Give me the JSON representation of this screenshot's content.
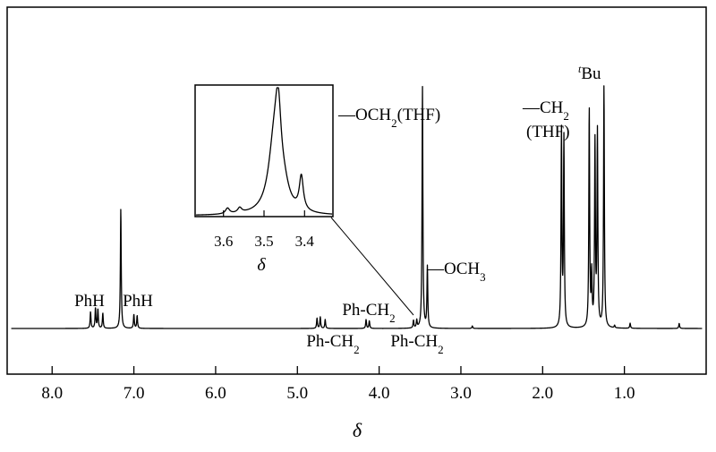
{
  "chart_data": [
    {
      "type": "line",
      "title": "",
      "xlabel": "δ",
      "ylabel": "",
      "x_reversed": true,
      "xlim": [
        8.55,
        0.0
      ],
      "ylim": [
        -0.12,
        1.0
      ],
      "grid": false,
      "legend": "none",
      "x_ticks": [
        {
          "value": 8.0,
          "label": "8.0"
        },
        {
          "value": 7.0,
          "label": "7.0"
        },
        {
          "value": 6.0,
          "label": "6.0"
        },
        {
          "value": 5.0,
          "label": "5.0"
        },
        {
          "value": 4.0,
          "label": "4.0"
        },
        {
          "value": 3.0,
          "label": "3.0"
        },
        {
          "value": 2.0,
          "label": "2.0"
        },
        {
          "value": 1.0,
          "label": "1.0"
        }
      ],
      "peaks": [
        {
          "x": 7.53,
          "h": 0.065
        },
        {
          "x": 7.47,
          "h": 0.08
        },
        {
          "x": 7.44,
          "h": 0.075
        },
        {
          "x": 7.38,
          "h": 0.06
        },
        {
          "x": 7.16,
          "h": 0.47
        },
        {
          "x": 7.0,
          "h": 0.055
        },
        {
          "x": 6.96,
          "h": 0.05
        },
        {
          "x": 4.76,
          "h": 0.04
        },
        {
          "x": 4.72,
          "h": 0.045
        },
        {
          "x": 4.66,
          "h": 0.035
        },
        {
          "x": 4.16,
          "h": 0.035
        },
        {
          "x": 4.12,
          "h": 0.03
        },
        {
          "x": 3.58,
          "h": 0.03
        },
        {
          "x": 3.54,
          "h": 0.03
        },
        {
          "x": 3.47,
          "h": 0.95
        },
        {
          "x": 3.41,
          "h": 0.24
        },
        {
          "x": 2.86,
          "h": 0.01
        },
        {
          "x": 1.77,
          "h": 0.77
        },
        {
          "x": 1.74,
          "h": 0.74
        },
        {
          "x": 1.43,
          "h": 0.86
        },
        {
          "x": 1.4,
          "h": 0.2
        },
        {
          "x": 1.36,
          "h": 0.72
        },
        {
          "x": 1.33,
          "h": 0.76
        },
        {
          "x": 1.25,
          "h": 0.95
        },
        {
          "x": 1.12,
          "h": 0.01
        },
        {
          "x": 0.93,
          "h": 0.02
        },
        {
          "x": 0.33,
          "h": 0.02
        }
      ],
      "annotations": [
        {
          "id": "phh-left",
          "html": "PhH"
        },
        {
          "id": "phh-right",
          "html": "PhH"
        },
        {
          "id": "ph-ch2-a",
          "html": "Ph-CH<tspan baseline-shift='sub' font-size='13'>2</tspan>"
        },
        {
          "id": "ph-ch2-b",
          "html": "Ph-CH<tspan baseline-shift='sub' font-size='13'>2</tspan>"
        },
        {
          "id": "ph-ch2-c",
          "html": "Ph-CH<tspan baseline-shift='sub' font-size='13'>2</tspan>"
        },
        {
          "id": "och2-thf",
          "html": "—OCH<tspan baseline-shift='sub' font-size='13'>2</tspan>(THF)"
        },
        {
          "id": "och3",
          "html": "—OCH<tspan baseline-shift='sub' font-size='13'>3</tspan>"
        },
        {
          "id": "ch2-thf-1",
          "html": "—CH<tspan baseline-shift='sub' font-size='13'>2</tspan>"
        },
        {
          "id": "ch2-thf-2",
          "html": "(THF)"
        },
        {
          "id": "tbu",
          "html": "<tspan font-style='italic' baseline-shift='super' font-size='12'>t</tspan>Bu"
        }
      ]
    },
    {
      "type": "line",
      "role": "inset",
      "xlabel": "δ",
      "x_reversed": true,
      "xlim": [
        3.67,
        3.33
      ],
      "ylim": [
        -0.08,
        1.05
      ],
      "x_ticks": [
        {
          "value": 3.6,
          "label": "3.6"
        },
        {
          "value": 3.5,
          "label": "3.5"
        },
        {
          "value": 3.4,
          "label": "3.4"
        }
      ],
      "peaks": [
        {
          "x": 3.59,
          "h": 0.045,
          "w": 0.006
        },
        {
          "x": 3.56,
          "h": 0.04,
          "w": 0.006
        },
        {
          "x": 3.475,
          "h": 0.52,
          "w": 0.017
        },
        {
          "x": 3.465,
          "h": 0.58,
          "w": 0.009
        },
        {
          "x": 3.45,
          "h": 0.12,
          "w": 0.015
        },
        {
          "x": 3.408,
          "h": 0.27,
          "w": 0.006
        }
      ]
    }
  ]
}
